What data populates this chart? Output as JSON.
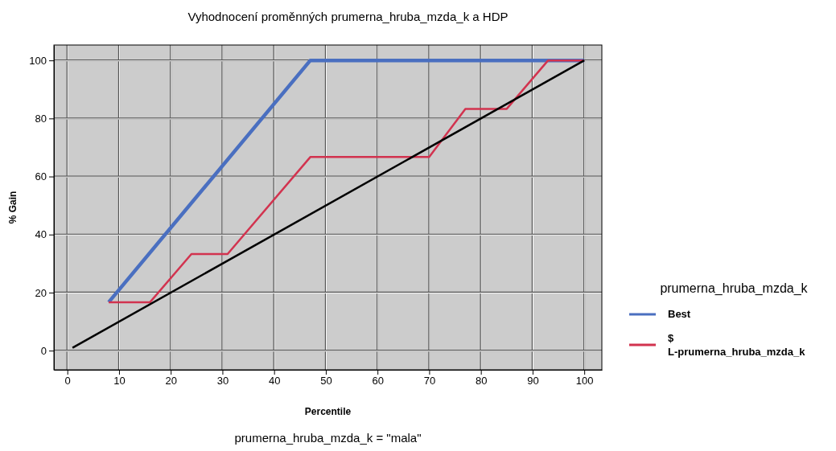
{
  "chart_data": {
    "type": "line",
    "title": "Vyhodnocení proměnných prumerna_hruba_mzda_k a HDP",
    "xlabel": "Percentile",
    "ylabel": "% Gain",
    "legend_title": "prumerna_hruba_mzda_k",
    "annotations": [
      "prumerna_hruba_mzda_k = \"mala\""
    ],
    "series": [
      {
        "name": "Best",
        "color": "#4a6fc0",
        "x": [
          8,
          47,
          100
        ],
        "values": [
          16.7,
          100,
          100
        ]
      },
      {
        "name": "$\nL-prumerna_hruba_mzda_k",
        "color": "#d2334f",
        "x": [
          8,
          16,
          24,
          31,
          47,
          70,
          77,
          85,
          93,
          100
        ],
        "values": [
          16.7,
          16.7,
          33.3,
          33.3,
          66.7,
          66.7,
          83.3,
          83.3,
          100,
          100
        ]
      },
      {
        "color": "#000000",
        "x": [
          1,
          100
        ],
        "values": [
          1,
          100
        ]
      }
    ],
    "xlim": [
      -2.6,
      103.4
    ],
    "ylim": [
      -6.6,
      105.3
    ],
    "xticks": [
      0,
      10,
      20,
      30,
      40,
      50,
      60,
      70,
      80,
      90,
      100
    ],
    "yticks": [
      0,
      20,
      40,
      60,
      80,
      100
    ],
    "grid": true,
    "legend": "right",
    "marker": "none",
    "line_style": "solid"
  }
}
